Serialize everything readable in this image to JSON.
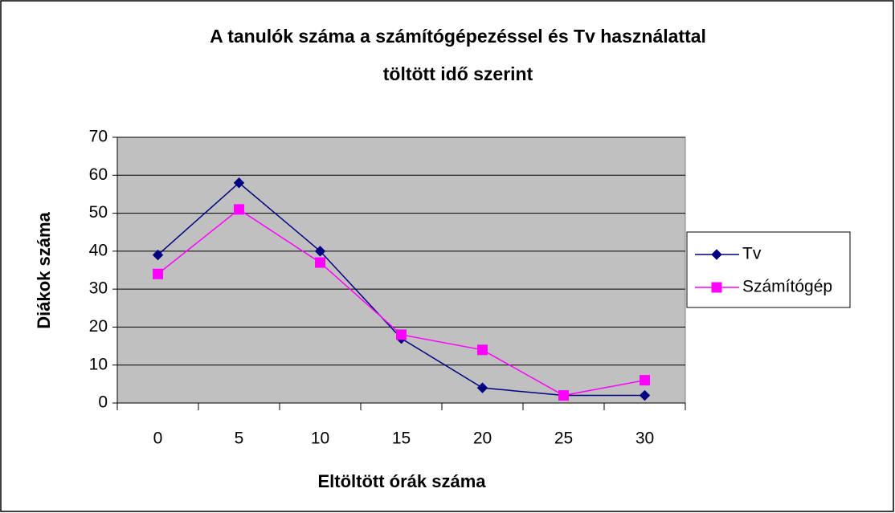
{
  "chart_data": {
    "type": "line",
    "title": [
      "A tanulók száma a számítógépezéssel és Tv használattal",
      "töltött idő szerint"
    ],
    "x_label": "Eltöltött órák száma",
    "y_label": "Diákok száma",
    "categories": [
      "0",
      "5",
      "10",
      "15",
      "20",
      "25",
      "30"
    ],
    "series": [
      {
        "name": "Tv",
        "color": "#000080",
        "marker": "diamond",
        "values": [
          39,
          58,
          40,
          17,
          4,
          2,
          2
        ]
      },
      {
        "name": "Számítógép",
        "color": "#ff00ff",
        "marker": "square",
        "values": [
          34,
          51,
          37,
          18,
          14,
          2,
          6
        ]
      }
    ],
    "ylim": [
      0,
      70
    ],
    "yticks": [
      0,
      10,
      20,
      30,
      40,
      50,
      60,
      70
    ],
    "grid": true,
    "plot_background": "#c0c0c0",
    "legend": "right"
  }
}
